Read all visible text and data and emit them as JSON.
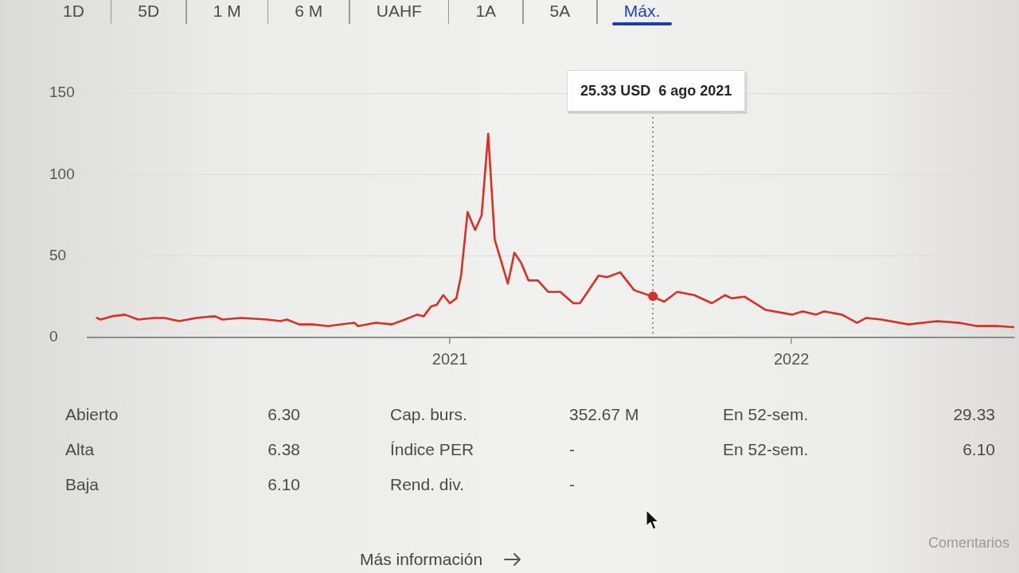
{
  "chart_data": [
    {
      "type": "other",
      "categories": [
        "1D",
        "5D",
        "1 M",
        "6 M",
        "UAHF",
        "1A",
        "5A",
        "Máx."
      ]
    },
    {
      "type": "line",
      "x": [
        "2019-12-21",
        "2019-12-25",
        "2020-01-06",
        "2020-01-20",
        "2020-02-03",
        "2020-02-20",
        "2020-03-02",
        "2020-03-18",
        "2020-04-05",
        "2020-04-25",
        "2020-05-03",
        "2020-05-23",
        "2020-06-20",
        "2020-07-04",
        "2020-07-11",
        "2020-07-24",
        "2020-08-07",
        "2020-08-24",
        "2020-09-21",
        "2020-09-25",
        "2020-10-14",
        "2020-10-31",
        "2020-11-14",
        "2020-11-27",
        "2020-12-04",
        "2020-12-12",
        "2020-12-18",
        "2020-12-25",
        "2021-01-01",
        "2021-01-08",
        "2021-01-13",
        "2021-01-20",
        "2021-01-28",
        "2021-02-04",
        "2021-02-11",
        "2021-02-18",
        "2021-03-04",
        "2021-03-11",
        "2021-03-18",
        "2021-03-26",
        "2021-04-05",
        "2021-04-16",
        "2021-04-29",
        "2021-05-13",
        "2021-05-20",
        "2021-06-09",
        "2021-06-18",
        "2021-07-02",
        "2021-07-17",
        "2021-08-06",
        "2021-08-18",
        "2021-09-01",
        "2021-09-19",
        "2021-10-08",
        "2021-10-22",
        "2021-10-29",
        "2021-11-12",
        "2021-11-26",
        "2021-12-04",
        "2022-01-02",
        "2022-01-13",
        "2022-01-27",
        "2022-02-05",
        "2022-02-24",
        "2022-03-12",
        "2022-03-22",
        "2022-04-07",
        "2022-05-06",
        "2022-06-06",
        "2022-06-29",
        "2022-07-18",
        "2022-08-10",
        "2022-08-27"
      ],
      "series": [
        {
          "color": "#d93025",
          "values": [
            12,
            11,
            13,
            14,
            11,
            12,
            12,
            10,
            12,
            13,
            11,
            12,
            11,
            10,
            11,
            8,
            8,
            7,
            9,
            7,
            9,
            8,
            11,
            14,
            13,
            19,
            20,
            26,
            21,
            24,
            38,
            77,
            66,
            75,
            125,
            60,
            33,
            52,
            46,
            35,
            35,
            28,
            28,
            21,
            21,
            38,
            37,
            40,
            29,
            25,
            22,
            28,
            26,
            21,
            26,
            24,
            25,
            20,
            17,
            14,
            16,
            14,
            16,
            14,
            9,
            12,
            11,
            8,
            10,
            9,
            7,
            7,
            6.3
          ]
        },
        {
          "type": "scatter",
          "x": [
            "2021-08-06"
          ],
          "values": [
            25.33
          ],
          "color": "#d93025",
          "marker": "circle"
        }
      ],
      "xlim": [
        "2019-12-11",
        "2022-08-27"
      ],
      "xticks": [
        "2021",
        "2022"
      ],
      "ylim": [
        0,
        150
      ],
      "yticks": [
        0,
        50,
        100,
        150
      ],
      "grid": "y",
      "ref_lines": [
        {
          "axis": "x",
          "value": "2021-08-06",
          "label": "25.33 USD  6 ago 2021",
          "color": "#777777",
          "line_style": "dotted"
        }
      ]
    },
    {
      "type": "other",
      "categories": [
        "Abierto",
        "Alta",
        "Baja",
        "Cap. burs.",
        "Índice PER",
        "Rend. div.",
        "En 52-sem.",
        "En 52-sem."
      ],
      "value_labels": [
        "6.30",
        "6.38",
        "6.10",
        "352.67 M",
        "-",
        "-",
        "29.33",
        "6.10"
      ],
      "annotations": [
        "Más información",
        "Comentarios"
      ]
    }
  ]
}
